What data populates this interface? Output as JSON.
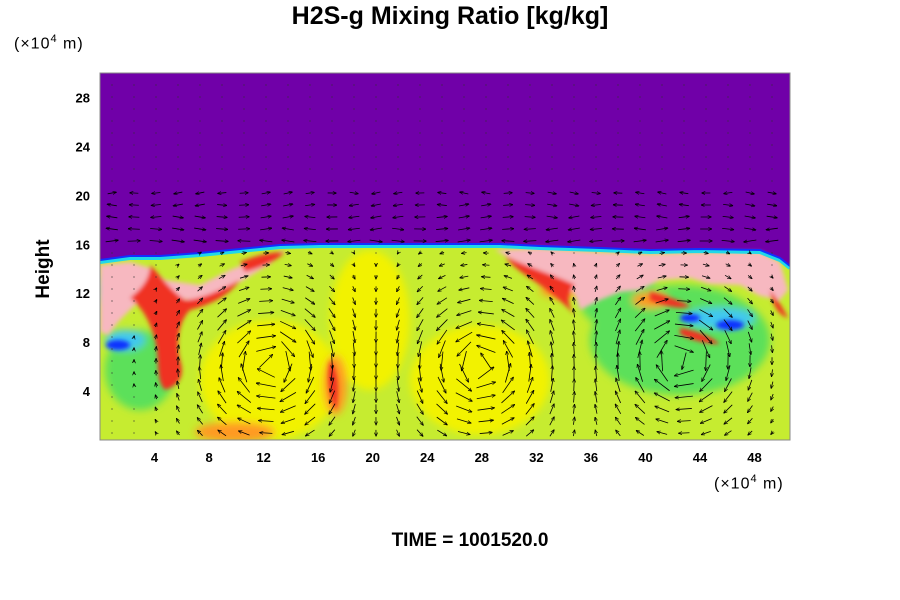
{
  "title": "H2S-g Mixing Ratio [kg/kg]",
  "time_label": "TIME = 1001520.0",
  "colors": {
    "upper_layer": "#7000a8",
    "boundary_blue": "#1030ff",
    "boundary_cyan": "#20d8e8",
    "pink": "#f7b8c0",
    "red": "#f03020",
    "orange": "#ff9a20",
    "yellow": "#f2f200",
    "yellow_green": "#c6ec30",
    "green": "#5ce05a",
    "light_blue": "#40c8f0"
  },
  "chart_data": {
    "type": "heatmap",
    "title": "H2S-g Mixing Ratio [kg/kg]",
    "ylabel": "Height",
    "x_unit_prefix": "(×10",
    "x_unit_exp": "4",
    "x_unit_suffix": " m)",
    "y_unit_prefix": "(×10",
    "y_unit_exp": "4",
    "y_unit_suffix": " m)",
    "xlim": [
      0,
      50.6
    ],
    "ylim": [
      0,
      30
    ],
    "x_ticks": [
      4,
      8,
      12,
      16,
      20,
      24,
      28,
      32,
      36,
      40,
      44,
      48
    ],
    "y_ticks": [
      4,
      8,
      12,
      16,
      20,
      24,
      28
    ],
    "layer_top": 15.5,
    "overlay": "wind vector arrows",
    "grid": false,
    "legend": "none"
  }
}
